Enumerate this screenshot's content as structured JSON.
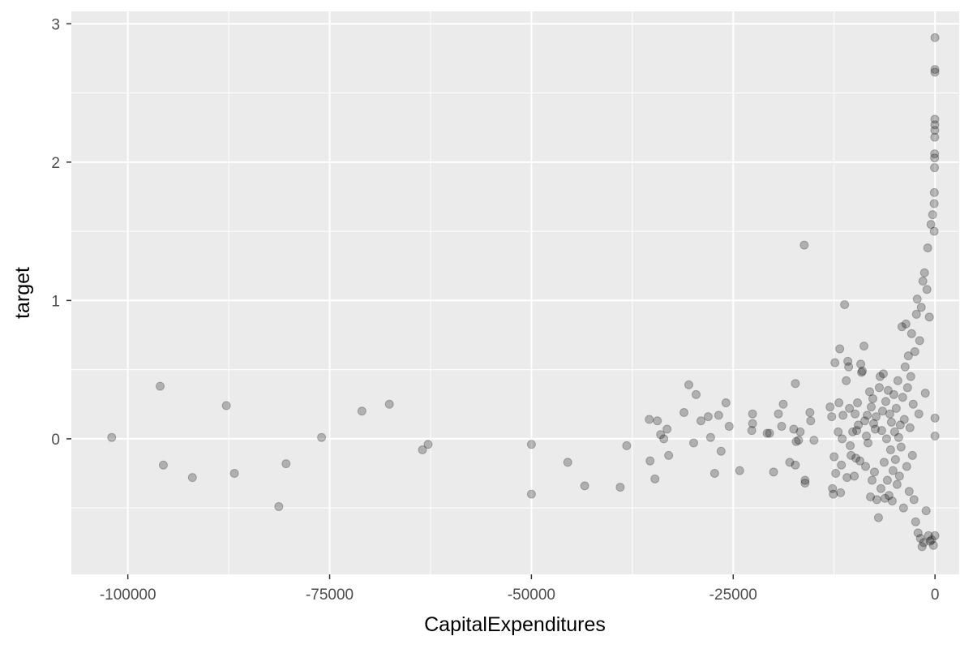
{
  "chart_data": {
    "type": "scatter",
    "title": "",
    "xlabel": "CapitalExpenditures",
    "ylabel": "target",
    "xlim": [
      -107000,
      3000
    ],
    "ylim": [
      -0.98,
      3.09
    ],
    "x_ticks": [
      -100000,
      -75000,
      -50000,
      -25000,
      0
    ],
    "x_tick_labels": [
      "-100000",
      "-75000",
      "-50000",
      "-25000",
      "0"
    ],
    "y_ticks": [
      0,
      1,
      2,
      3
    ],
    "y_tick_labels": [
      "0",
      "1",
      "2",
      "3"
    ],
    "grid": true,
    "legend": "none",
    "point_alpha": 0.25,
    "colors": {
      "panel": "#ebebeb",
      "grid": "#ffffff",
      "point": "#000000",
      "tick": "#4d4d4d",
      "axis_title": "#000000",
      "background": "#ffffff"
    },
    "series": [
      {
        "points": [
          {
            "x": -102000,
            "y": 0.01
          },
          {
            "x": -96000,
            "y": 0.38
          },
          {
            "x": -95600,
            "y": -0.19
          },
          {
            "x": -92000,
            "y": -0.28
          },
          {
            "x": -87800,
            "y": 0.24
          },
          {
            "x": -86800,
            "y": -0.25
          },
          {
            "x": -81300,
            "y": -0.49
          },
          {
            "x": -80400,
            "y": -0.18
          },
          {
            "x": -76000,
            "y": 0.01
          },
          {
            "x": -71000,
            "y": 0.2
          },
          {
            "x": -67600,
            "y": 0.25
          },
          {
            "x": -63500,
            "y": -0.08
          },
          {
            "x": -62800,
            "y": -0.04
          },
          {
            "x": -50000,
            "y": -0.04
          },
          {
            "x": -50000,
            "y": -0.4
          },
          {
            "x": -45500,
            "y": -0.17
          },
          {
            "x": -43400,
            "y": -0.34
          },
          {
            "x": -39000,
            "y": -0.35
          },
          {
            "x": -38200,
            "y": -0.05
          },
          {
            "x": -35400,
            "y": 0.14
          },
          {
            "x": -35300,
            "y": -0.16
          },
          {
            "x": -34700,
            "y": -0.29
          },
          {
            "x": -34400,
            "y": 0.13
          },
          {
            "x": -34000,
            "y": 0.03
          },
          {
            "x": -33600,
            "y": 0.0
          },
          {
            "x": -33200,
            "y": 0.07
          },
          {
            "x": -33000,
            "y": -0.12
          },
          {
            "x": -31100,
            "y": 0.19
          },
          {
            "x": -30500,
            "y": 0.39
          },
          {
            "x": -29900,
            "y": -0.03
          },
          {
            "x": -29600,
            "y": 0.32
          },
          {
            "x": -29000,
            "y": 0.13
          },
          {
            "x": -28100,
            "y": 0.16
          },
          {
            "x": -27800,
            "y": 0.01
          },
          {
            "x": -27300,
            "y": -0.25
          },
          {
            "x": -26800,
            "y": 0.17
          },
          {
            "x": -26500,
            "y": -0.09
          },
          {
            "x": -25900,
            "y": 0.26
          },
          {
            "x": -25500,
            "y": 0.09
          },
          {
            "x": -24200,
            "y": -0.23
          },
          {
            "x": -22700,
            "y": 0.06
          },
          {
            "x": -22600,
            "y": 0.18
          },
          {
            "x": -22600,
            "y": 0.11
          },
          {
            "x": -20800,
            "y": 0.04
          },
          {
            "x": -20500,
            "y": 0.04
          },
          {
            "x": -20000,
            "y": -0.24
          },
          {
            "x": -19400,
            "y": 0.18
          },
          {
            "x": -19000,
            "y": 0.09
          },
          {
            "x": -18800,
            "y": 0.25
          },
          {
            "x": -18000,
            "y": -0.17
          },
          {
            "x": -17500,
            "y": 0.07
          },
          {
            "x": -17300,
            "y": 0.4
          },
          {
            "x": -17300,
            "y": -0.19
          },
          {
            "x": -17200,
            "y": -0.02
          },
          {
            "x": -16900,
            "y": -0.01
          },
          {
            "x": -16700,
            "y": 0.05
          },
          {
            "x": -16200,
            "y": 1.4
          },
          {
            "x": -16100,
            "y": -0.3
          },
          {
            "x": -16100,
            "y": -0.32
          },
          {
            "x": -15500,
            "y": 0.19
          },
          {
            "x": -15400,
            "y": 0.13
          },
          {
            "x": -15000,
            "y": -0.01
          },
          {
            "x": -13000,
            "y": 0.23
          },
          {
            "x": -12800,
            "y": 0.16
          },
          {
            "x": -12700,
            "y": -0.36
          },
          {
            "x": -12600,
            "y": -0.4
          },
          {
            "x": -12500,
            "y": -0.13
          },
          {
            "x": -12400,
            "y": 0.55
          },
          {
            "x": -12300,
            "y": -0.25
          },
          {
            "x": -12000,
            "y": 0.05
          },
          {
            "x": -11900,
            "y": 0.26
          },
          {
            "x": -11800,
            "y": 0.65
          },
          {
            "x": -11700,
            "y": -0.39
          },
          {
            "x": -11600,
            "y": -0.19
          },
          {
            "x": -11500,
            "y": 0.0
          },
          {
            "x": -11400,
            "y": 0.17
          },
          {
            "x": -11200,
            "y": 0.97
          },
          {
            "x": -11000,
            "y": 0.42
          },
          {
            "x": -10900,
            "y": -0.28
          },
          {
            "x": -10800,
            "y": 0.56
          },
          {
            "x": -10700,
            "y": 0.52
          },
          {
            "x": -10600,
            "y": 0.22
          },
          {
            "x": -10500,
            "y": -0.05
          },
          {
            "x": -10400,
            "y": -0.12
          },
          {
            "x": -10200,
            "y": 0.05
          },
          {
            "x": -10000,
            "y": -0.27
          },
          {
            "x": -9900,
            "y": 0.18
          },
          {
            "x": -9800,
            "y": -0.14
          },
          {
            "x": -9700,
            "y": 0.06
          },
          {
            "x": -9600,
            "y": 0.26
          },
          {
            "x": -9500,
            "y": 0.1
          },
          {
            "x": -9300,
            "y": -0.16
          },
          {
            "x": -9200,
            "y": 0.54
          },
          {
            "x": -9100,
            "y": 0.48
          },
          {
            "x": -9000,
            "y": 0.49
          },
          {
            "x": -8800,
            "y": 0.67
          },
          {
            "x": -8700,
            "y": 0.13
          },
          {
            "x": -8600,
            "y": -0.2
          },
          {
            "x": -8500,
            "y": 0.02
          },
          {
            "x": -8400,
            "y": 0.17
          },
          {
            "x": -8300,
            "y": -0.03
          },
          {
            "x": -8100,
            "y": 0.34
          },
          {
            "x": -8000,
            "y": -0.42
          },
          {
            "x": -7900,
            "y": 0.23
          },
          {
            "x": -7800,
            "y": -0.3
          },
          {
            "x": -7700,
            "y": 0.29
          },
          {
            "x": -7600,
            "y": 0.11
          },
          {
            "x": -7500,
            "y": -0.24
          },
          {
            "x": -7400,
            "y": 0.07
          },
          {
            "x": -7300,
            "y": 0.16
          },
          {
            "x": -7200,
            "y": -0.44
          },
          {
            "x": -7000,
            "y": -0.57
          },
          {
            "x": -6900,
            "y": 0.37
          },
          {
            "x": -6800,
            "y": 0.45
          },
          {
            "x": -6700,
            "y": -0.36
          },
          {
            "x": -6600,
            "y": 0.06
          },
          {
            "x": -6500,
            "y": 0.2
          },
          {
            "x": -6400,
            "y": 0.47
          },
          {
            "x": -6300,
            "y": -0.17
          },
          {
            "x": -6200,
            "y": -0.43
          },
          {
            "x": -6100,
            "y": 0.27
          },
          {
            "x": -6000,
            "y": 0.0
          },
          {
            "x": -5900,
            "y": -0.3
          },
          {
            "x": -5800,
            "y": 0.35
          },
          {
            "x": -5700,
            "y": -0.41
          },
          {
            "x": -5600,
            "y": 0.18
          },
          {
            "x": -5500,
            "y": -0.08
          },
          {
            "x": -5400,
            "y": 0.12
          },
          {
            "x": -5300,
            "y": -0.45
          },
          {
            "x": -5200,
            "y": -0.23
          },
          {
            "x": -5100,
            "y": 0.32
          },
          {
            "x": -5000,
            "y": 0.05
          },
          {
            "x": -4900,
            "y": -0.15
          },
          {
            "x": -4800,
            "y": 0.22
          },
          {
            "x": -4700,
            "y": -0.33
          },
          {
            "x": -4600,
            "y": 0.42
          },
          {
            "x": -4500,
            "y": 0.01
          },
          {
            "x": -4400,
            "y": -0.27
          },
          {
            "x": -4300,
            "y": 0.1
          },
          {
            "x": -4200,
            "y": -0.06
          },
          {
            "x": -4100,
            "y": 0.81
          },
          {
            "x": -4000,
            "y": 0.3
          },
          {
            "x": -3900,
            "y": -0.5
          },
          {
            "x": -3800,
            "y": 0.14
          },
          {
            "x": -3700,
            "y": 0.52
          },
          {
            "x": -3600,
            "y": 0.83
          },
          {
            "x": -3500,
            "y": -0.2
          },
          {
            "x": -3400,
            "y": 0.37
          },
          {
            "x": -3300,
            "y": 0.6
          },
          {
            "x": -3200,
            "y": -0.38
          },
          {
            "x": -3100,
            "y": 0.08
          },
          {
            "x": -3000,
            "y": 0.45
          },
          {
            "x": -2900,
            "y": 0.76
          },
          {
            "x": -2800,
            "y": -0.12
          },
          {
            "x": -2700,
            "y": 0.25
          },
          {
            "x": -2600,
            "y": -0.44
          },
          {
            "x": -2500,
            "y": 0.63
          },
          {
            "x": -2400,
            "y": -0.6
          },
          {
            "x": -2300,
            "y": 0.9
          },
          {
            "x": -2200,
            "y": 1.01
          },
          {
            "x": -2100,
            "y": -0.68
          },
          {
            "x": -2000,
            "y": 0.18
          },
          {
            "x": -1900,
            "y": 0.71
          },
          {
            "x": -1800,
            "y": -0.72
          },
          {
            "x": -1700,
            "y": 0.95
          },
          {
            "x": -1600,
            "y": -0.78
          },
          {
            "x": -1500,
            "y": 1.14
          },
          {
            "x": -1400,
            "y": -0.75
          },
          {
            "x": -1300,
            "y": 1.2
          },
          {
            "x": -1200,
            "y": 0.33
          },
          {
            "x": -1100,
            "y": -0.52
          },
          {
            "x": -1000,
            "y": 1.08
          },
          {
            "x": -900,
            "y": 1.38
          },
          {
            "x": -800,
            "y": -0.7
          },
          {
            "x": -700,
            "y": 0.88
          },
          {
            "x": -600,
            "y": -0.74
          },
          {
            "x": -500,
            "y": 1.55
          },
          {
            "x": -400,
            "y": -0.73
          },
          {
            "x": -300,
            "y": 1.62
          },
          {
            "x": -200,
            "y": -0.77
          },
          {
            "x": -100,
            "y": 1.5
          },
          {
            "x": -100,
            "y": 1.7
          },
          {
            "x": -80,
            "y": 1.78
          },
          {
            "x": -60,
            "y": 1.96
          },
          {
            "x": -50,
            "y": 2.03
          },
          {
            "x": -40,
            "y": 2.06
          },
          {
            "x": -30,
            "y": 2.18
          },
          {
            "x": -25,
            "y": 2.23
          },
          {
            "x": -20,
            "y": 2.27
          },
          {
            "x": -15,
            "y": 2.31
          },
          {
            "x": -10,
            "y": 2.65
          },
          {
            "x": -8,
            "y": 2.67
          },
          {
            "x": -5,
            "y": 2.9
          },
          {
            "x": -3,
            "y": -0.7
          },
          {
            "x": -2,
            "y": 0.02
          },
          {
            "x": -1,
            "y": 0.15
          }
        ]
      }
    ]
  }
}
